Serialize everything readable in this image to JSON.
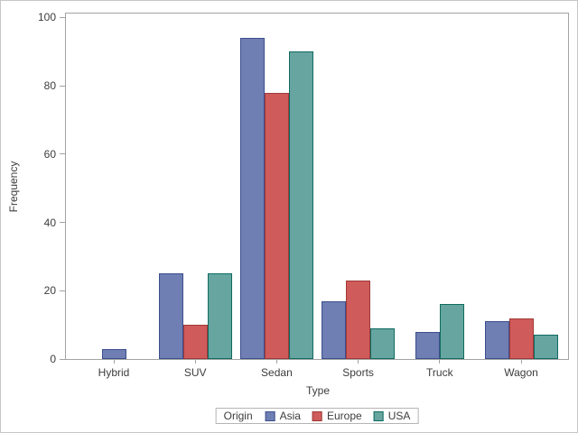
{
  "chart_data": {
    "type": "bar",
    "title": "",
    "xlabel": "Type",
    "ylabel": "Frequency",
    "categories": [
      "Hybrid",
      "SUV",
      "Sedan",
      "Sports",
      "Truck",
      "Wagon"
    ],
    "series": [
      {
        "name": "Asia",
        "fill": "#6F7EB3",
        "outline": "#3D4E8D",
        "values": [
          3,
          25,
          94,
          17,
          8,
          11
        ]
      },
      {
        "name": "Europe",
        "fill": "#D05B5B",
        "outline": "#9D3A38",
        "values": [
          0,
          10,
          78,
          23,
          0,
          12
        ]
      },
      {
        "name": "USA",
        "fill": "#66A5A0",
        "outline": "#0F6B60",
        "values": [
          0,
          25,
          90,
          9,
          16,
          7
        ]
      }
    ],
    "ylim": [
      0,
      100
    ],
    "yticks": [
      0,
      20,
      40,
      60,
      80,
      100
    ],
    "grid": false,
    "zero_bars_omitted": true,
    "legend": {
      "title": "Origin",
      "position": "bottom",
      "entries": [
        "Asia",
        "Europe",
        "USA"
      ]
    }
  },
  "colors": {
    "background": "#ffffff",
    "figure_border": "#c6c6c6",
    "axis_line": "#a3a3a3",
    "legend_border": "#b5b5b5",
    "text": "#3c3c3c"
  }
}
